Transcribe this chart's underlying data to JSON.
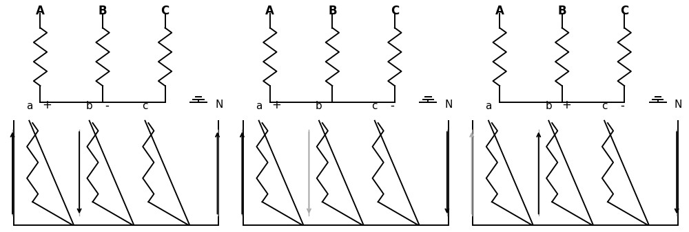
{
  "bg": "#ffffff",
  "lc": "#000000",
  "gc": "#aaaaaa",
  "lw": 1.4,
  "upper_labels": [
    "A",
    "B",
    "C"
  ],
  "lower_labels": [
    "a",
    "b",
    "c"
  ],
  "pm_signs": [
    [
      [
        "+",
        0
      ],
      [
        "-",
        1
      ]
    ],
    [
      [
        "+",
        0
      ],
      [
        "-",
        2
      ]
    ],
    [
      [
        "+",
        1
      ],
      [
        "-",
        2
      ]
    ]
  ],
  "arrows": [
    {
      "a": "up_dark",
      "b": "down_dark",
      "c": "up_dark"
    },
    {
      "a": "up_dark",
      "b": "down_gray",
      "c": "down_dark"
    },
    {
      "a": "up_gray",
      "b": "up_dark",
      "c": "down_dark"
    }
  ]
}
